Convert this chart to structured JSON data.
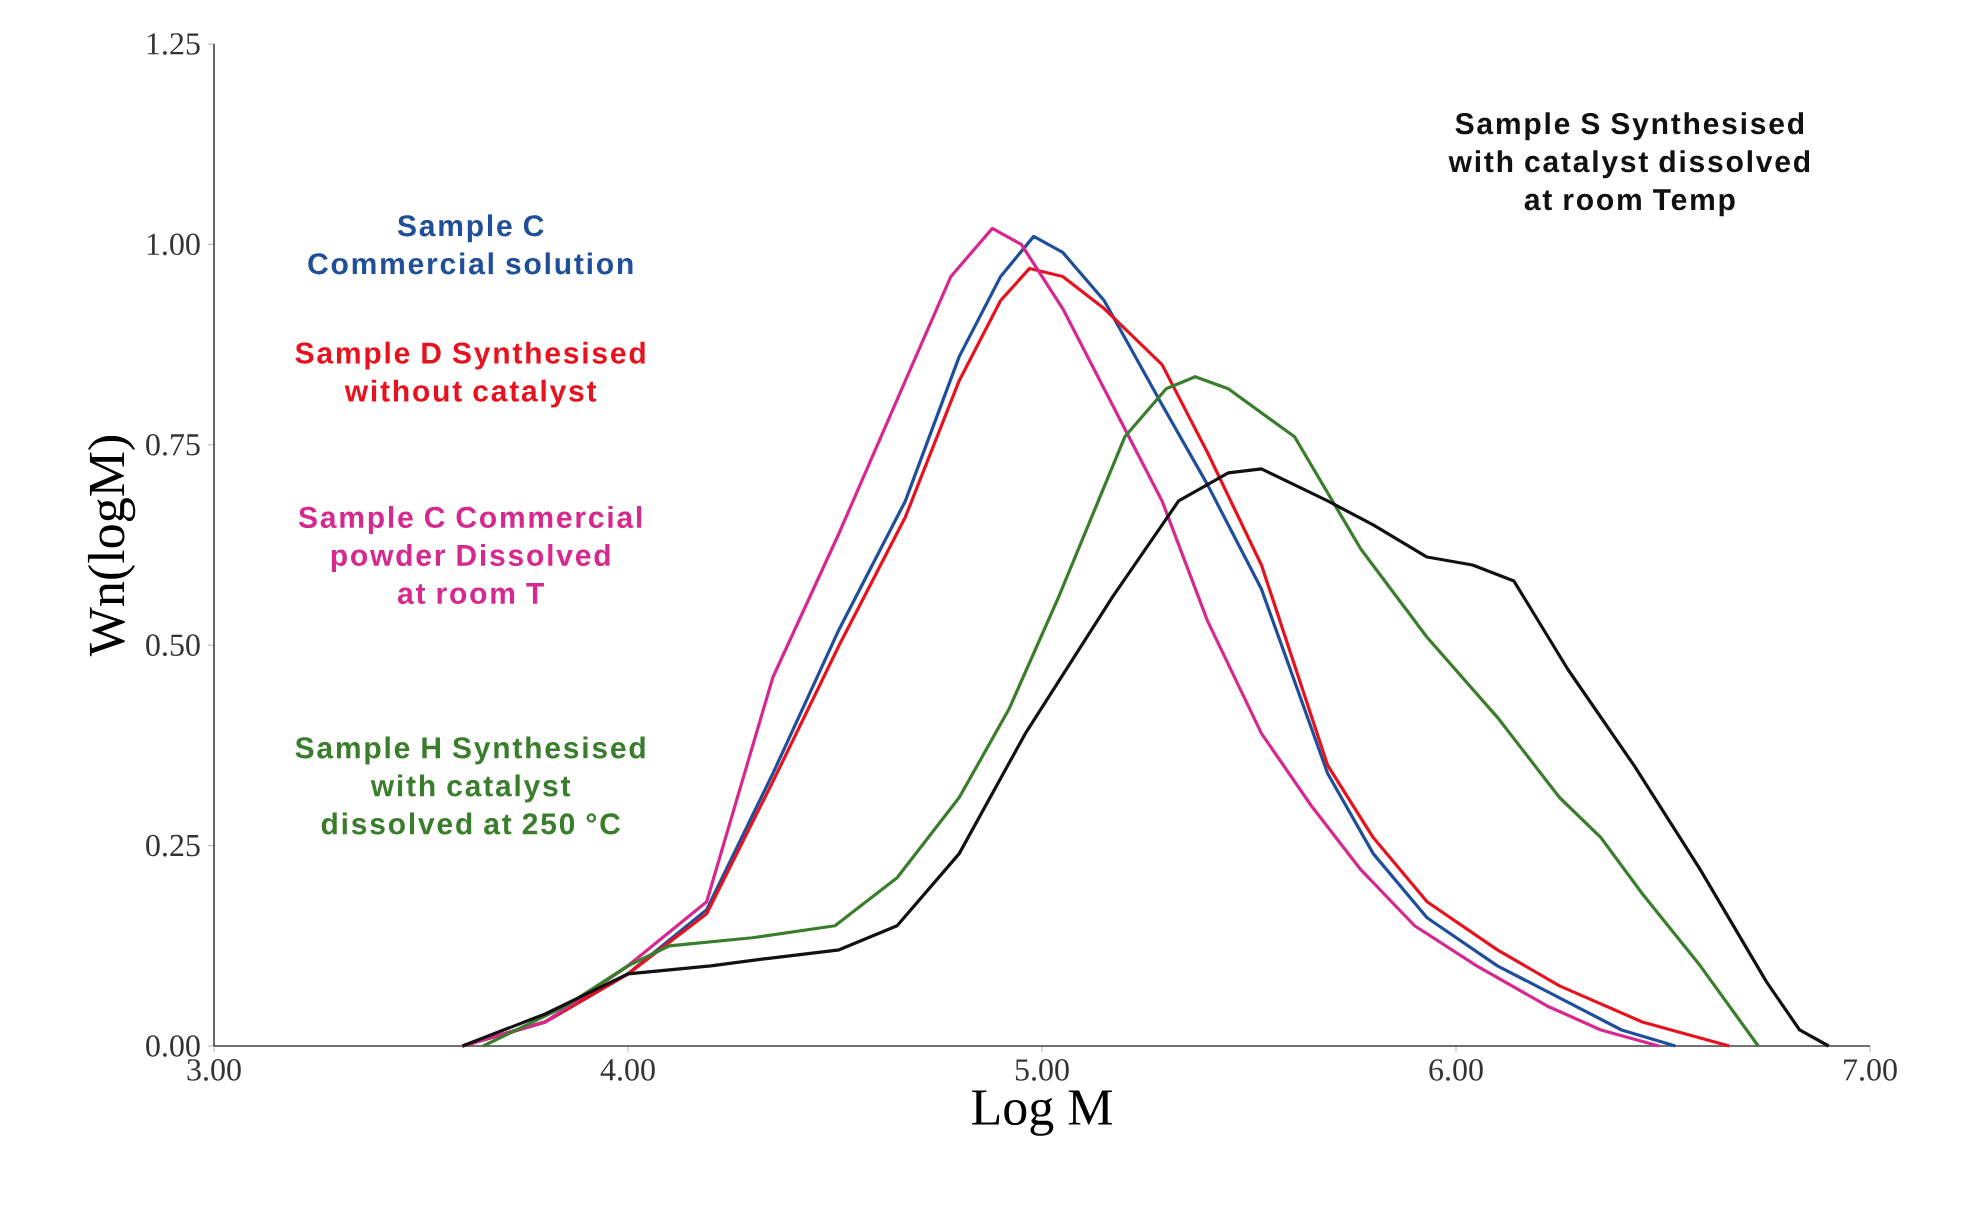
{
  "chart_data": {
    "type": "line",
    "xlabel": "Log M",
    "ylabel": "Wn(logM)",
    "xlim": [
      3,
      7
    ],
    "ylim": [
      0,
      1.25
    ],
    "xticks": [
      {
        "value": 3,
        "label": "3.00"
      },
      {
        "value": 4,
        "label": "4.00"
      },
      {
        "value": 5,
        "label": "5.00"
      },
      {
        "value": 6,
        "label": "6.00"
      },
      {
        "value": 7,
        "label": "7.00"
      }
    ],
    "yticks": [
      {
        "value": 0,
        "label": "0.00"
      },
      {
        "value": 0.25,
        "label": "0.25"
      },
      {
        "value": 0.5,
        "label": "0.50"
      },
      {
        "value": 0.75,
        "label": "0.75"
      },
      {
        "value": 1,
        "label": "1.00"
      },
      {
        "value": 1.25,
        "label": "1.25"
      }
    ],
    "grid": false,
    "series": [
      {
        "name": "Sample C Commercial solution",
        "color": "#1f4e9a",
        "x": [
          3.6,
          3.8,
          4.0,
          4.19,
          4.35,
          4.51,
          4.67,
          4.8,
          4.9,
          4.98,
          5.05,
          5.15,
          5.29,
          5.4,
          5.53,
          5.69,
          5.8,
          5.93,
          6.1,
          6.25,
          6.4,
          6.53
        ],
        "values": [
          0,
          0.03,
          0.09,
          0.17,
          0.34,
          0.52,
          0.68,
          0.86,
          0.96,
          1.01,
          0.99,
          0.93,
          0.8,
          0.7,
          0.57,
          0.34,
          0.24,
          0.16,
          0.1,
          0.06,
          0.02,
          0
        ]
      },
      {
        "name": "Sample D Synthesised without catalyst",
        "color": "#e8121e",
        "x": [
          3.6,
          3.8,
          4.0,
          4.19,
          4.35,
          4.51,
          4.67,
          4.8,
          4.9,
          4.97,
          5.05,
          5.15,
          5.29,
          5.4,
          5.53,
          5.69,
          5.8,
          5.93,
          6.1,
          6.25,
          6.45,
          6.66
        ],
        "values": [
          0,
          0.03,
          0.09,
          0.165,
          0.33,
          0.5,
          0.66,
          0.83,
          0.93,
          0.97,
          0.96,
          0.92,
          0.85,
          0.74,
          0.6,
          0.35,
          0.26,
          0.18,
          0.12,
          0.075,
          0.03,
          0
        ]
      },
      {
        "name": "Sample C Commercial powder Dissolved at room T",
        "color": "#d6288f",
        "x": [
          3.6,
          3.8,
          4.0,
          4.19,
          4.35,
          4.51,
          4.67,
          4.78,
          4.88,
          4.95,
          5.05,
          5.15,
          5.29,
          5.4,
          5.53,
          5.65,
          5.77,
          5.9,
          6.05,
          6.22,
          6.35,
          6.49
        ],
        "values": [
          0,
          0.03,
          0.1,
          0.18,
          0.46,
          0.64,
          0.83,
          0.96,
          1.02,
          1.0,
          0.92,
          0.82,
          0.68,
          0.53,
          0.39,
          0.3,
          0.22,
          0.15,
          0.1,
          0.05,
          0.02,
          0
        ]
      },
      {
        "name": "Sample H Synthesised with catalyst dissolved at 250 °C",
        "color": "#3a7d2c",
        "x": [
          3.65,
          3.85,
          4.0,
          4.1,
          4.3,
          4.5,
          4.65,
          4.8,
          4.92,
          5.04,
          5.2,
          5.3,
          5.37,
          5.45,
          5.61,
          5.77,
          5.93,
          6.1,
          6.25,
          6.35,
          6.45,
          6.59,
          6.73
        ],
        "values": [
          0,
          0.05,
          0.1,
          0.125,
          0.135,
          0.15,
          0.21,
          0.31,
          0.42,
          0.56,
          0.76,
          0.82,
          0.835,
          0.82,
          0.76,
          0.62,
          0.51,
          0.41,
          0.31,
          0.26,
          0.19,
          0.1,
          0.0
        ]
      },
      {
        "name": "Sample S Synthesised with catalyst dissolved at room Temp",
        "color": "#111111",
        "x": [
          3.6,
          3.8,
          4.0,
          4.2,
          4.35,
          4.51,
          4.65,
          4.8,
          4.96,
          5.17,
          5.33,
          5.45,
          5.53,
          5.69,
          5.8,
          5.93,
          6.04,
          6.14,
          6.27,
          6.43,
          6.59,
          6.75,
          6.83,
          6.9
        ],
        "values": [
          0,
          0.04,
          0.09,
          0.1,
          0.11,
          0.12,
          0.15,
          0.24,
          0.39,
          0.56,
          0.68,
          0.715,
          0.72,
          0.68,
          0.65,
          0.61,
          0.6,
          0.58,
          0.47,
          0.35,
          0.22,
          0.08,
          0.02,
          0
        ]
      }
    ]
  }
}
